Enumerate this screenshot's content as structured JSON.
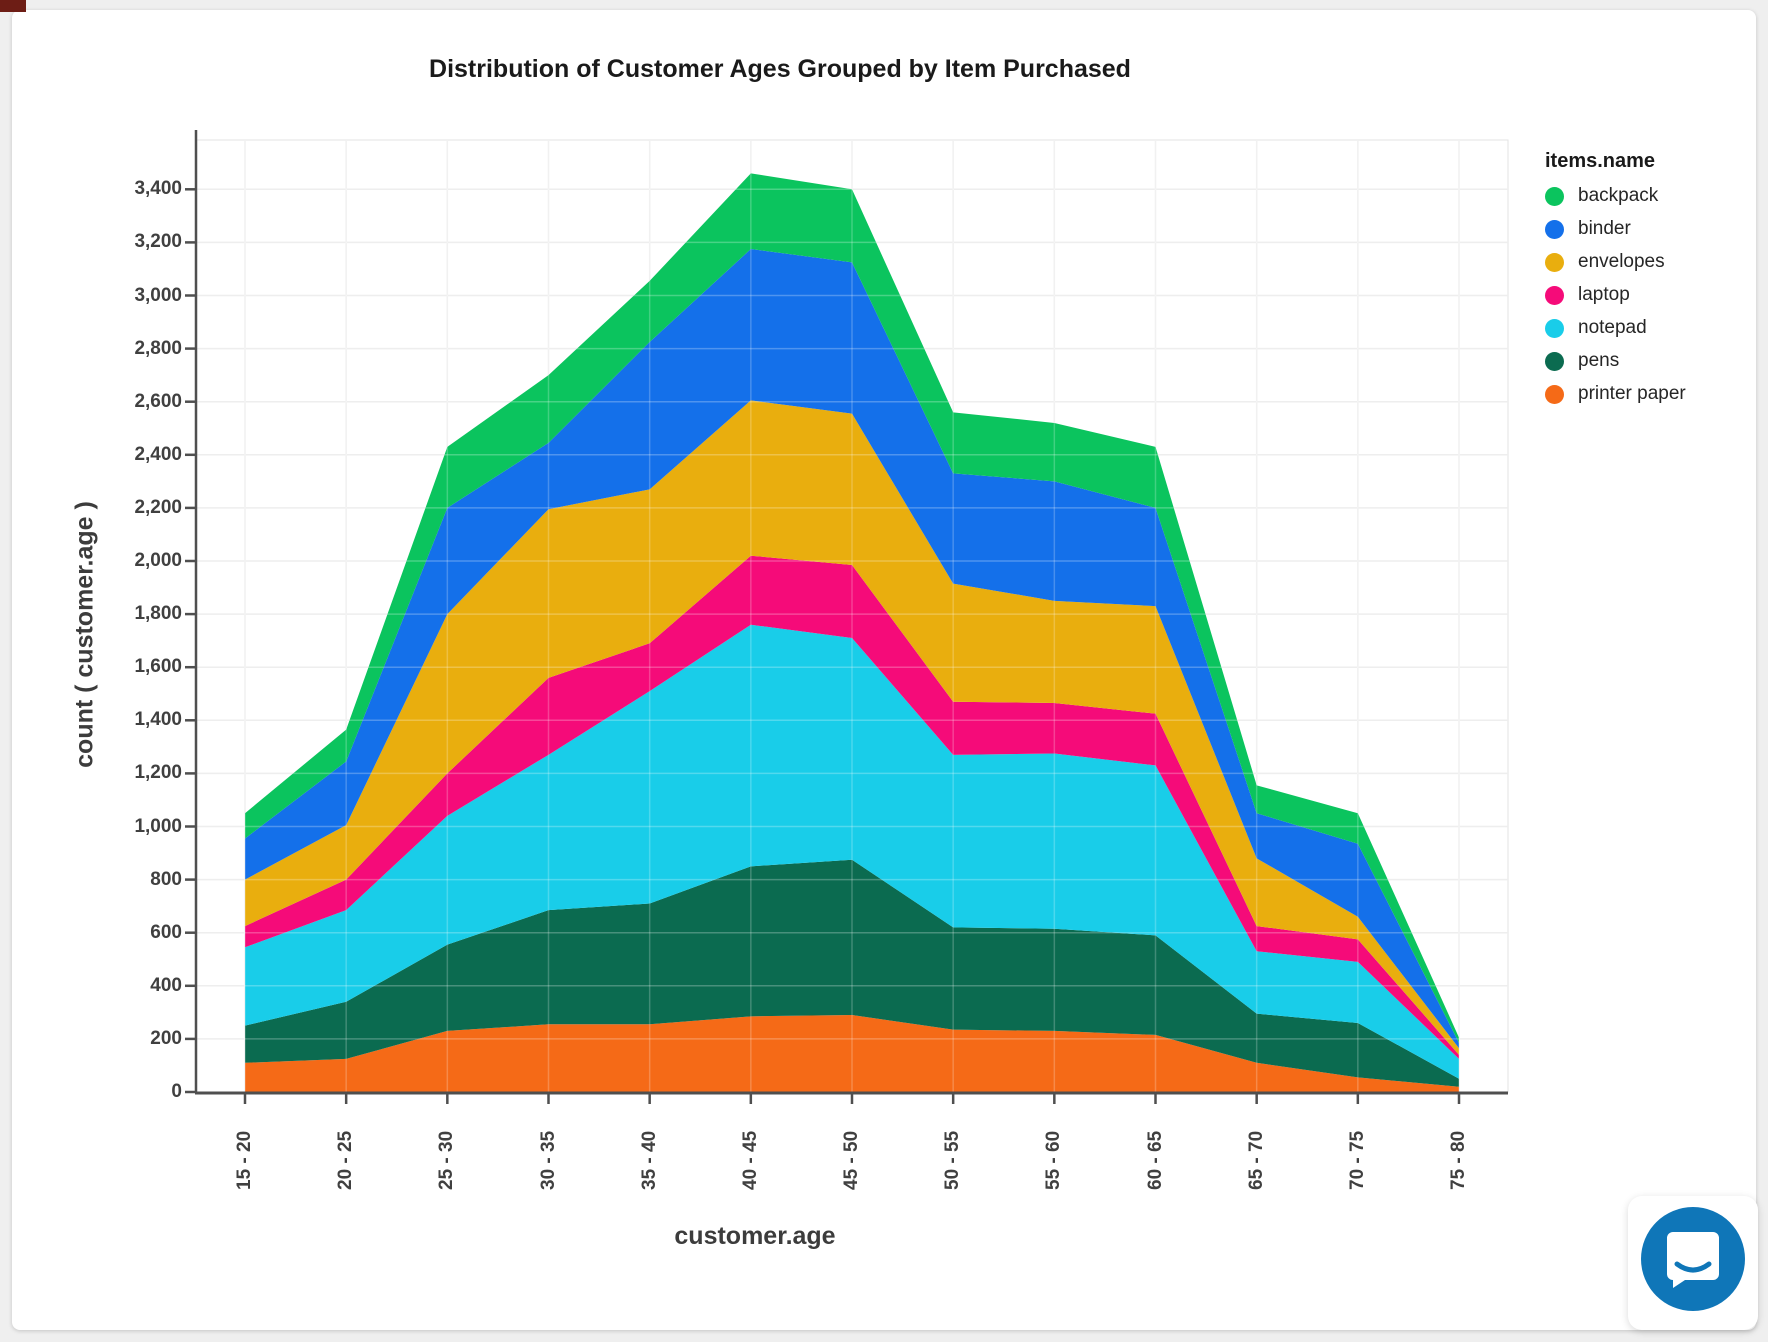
{
  "header": {
    "title": "Distribution of Customer Ages Grouped by Item Purchased"
  },
  "chart_data": {
    "type": "area",
    "stacked": true,
    "title": "Distribution of Customer Ages Grouped by Item Purchased",
    "xlabel": "customer.age",
    "ylabel": "count ( customer.age )",
    "legend_title": "items.name",
    "legend_position": "right",
    "grid": true,
    "ylim": [
      0,
      3400
    ],
    "ytick_step": 200,
    "categories": [
      "15 - 20",
      "20 - 25",
      "25 - 30",
      "30 - 35",
      "35 - 40",
      "40 - 45",
      "45 - 50",
      "50 - 55",
      "55 - 60",
      "60 - 65",
      "65 - 70",
      "70 - 75",
      "75 - 80"
    ],
    "stack_bottom_to_top": [
      "printer paper",
      "pens",
      "notepad",
      "laptop",
      "envelopes",
      "binder",
      "backpack"
    ],
    "series": [
      {
        "name": "backpack",
        "color": "#0bc45e",
        "values": [
          95,
          120,
          230,
          255,
          230,
          285,
          275,
          230,
          220,
          230,
          105,
          115,
          20
        ]
      },
      {
        "name": "binder",
        "color": "#1470ea",
        "values": [
          155,
          240,
          400,
          250,
          555,
          570,
          570,
          415,
          450,
          370,
          170,
          275,
          20
        ]
      },
      {
        "name": "envelopes",
        "color": "#e9ae0e",
        "values": [
          175,
          205,
          600,
          635,
          580,
          585,
          570,
          445,
          385,
          405,
          255,
          85,
          25
        ]
      },
      {
        "name": "laptop",
        "color": "#f50b79",
        "values": [
          80,
          115,
          160,
          290,
          180,
          260,
          275,
          200,
          190,
          195,
          95,
          85,
          15
        ]
      },
      {
        "name": "notepad",
        "color": "#19cde9",
        "values": [
          295,
          345,
          485,
          585,
          800,
          910,
          835,
          650,
          660,
          640,
          235,
          230,
          75
        ]
      },
      {
        "name": "pens",
        "color": "#0b6b50",
        "values": [
          140,
          215,
          325,
          430,
          455,
          565,
          585,
          385,
          385,
          375,
          185,
          205,
          30
        ]
      },
      {
        "name": "printer paper",
        "color": "#f56a17",
        "values": [
          110,
          125,
          230,
          255,
          255,
          285,
          290,
          235,
          230,
          215,
          110,
          55,
          20
        ]
      }
    ],
    "totals": [
      1050,
      1365,
      2430,
      2700,
      3055,
      3460,
      3400,
      2560,
      2520,
      2430,
      1155,
      1050,
      205
    ]
  },
  "legend": {
    "title": "items.name"
  },
  "chat_widget": {
    "icon": "chat-bubble-smile"
  }
}
